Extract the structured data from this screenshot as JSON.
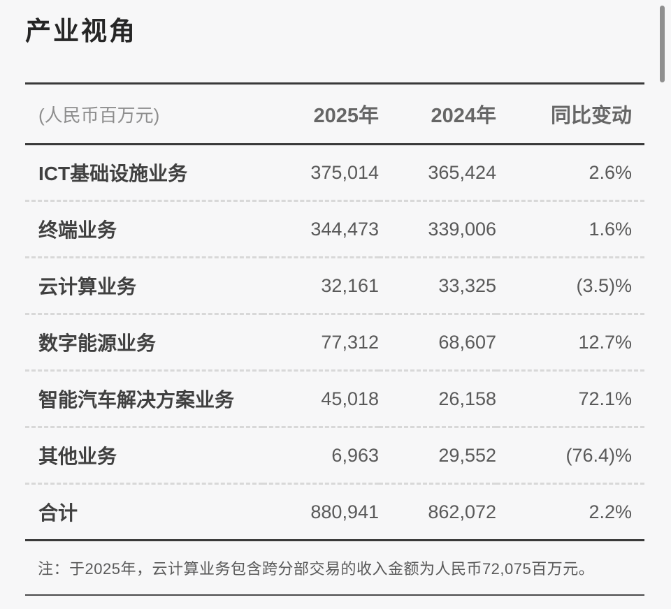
{
  "page": {
    "title": "产业视角"
  },
  "table": {
    "unit_label": "(人民币百万元)",
    "columns": {
      "col_2025": "2025年",
      "col_2024": "2024年",
      "col_yoy": "同比变动"
    },
    "rows": [
      {
        "label": "ICT基础设施业务",
        "y2025": "375,014",
        "y2024": "365,424",
        "yoy": "2.6%"
      },
      {
        "label": "终端业务",
        "y2025": "344,473",
        "y2024": "339,006",
        "yoy": "1.6%"
      },
      {
        "label": "云计算业务",
        "y2025": "32,161",
        "y2024": "33,325",
        "yoy": "(3.5)%"
      },
      {
        "label": "数字能源业务",
        "y2025": "77,312",
        "y2024": "68,607",
        "yoy": "12.7%"
      },
      {
        "label": "智能汽车解决方案业务",
        "y2025": "45,018",
        "y2024": "26,158",
        "yoy": "72.1%"
      },
      {
        "label": "其他业务",
        "y2025": "6,963",
        "y2024": "29,552",
        "yoy": "(76.4)%"
      }
    ],
    "total": {
      "label": "合计",
      "y2025": "880,941",
      "y2024": "862,072",
      "yoy": "2.2%"
    }
  },
  "note": "注：于2025年，云计算业务包含跨分部交易的收入金额为人民币72,075百万元。",
  "chart_data": {
    "type": "table",
    "title": "产业视角",
    "unit": "人民币百万元",
    "columns": [
      "",
      "2025年",
      "2024年",
      "同比变动"
    ],
    "rows": [
      [
        "ICT基础设施业务",
        375014,
        365424,
        "2.6%"
      ],
      [
        "终端业务",
        344473,
        339006,
        "1.6%"
      ],
      [
        "云计算业务",
        32161,
        33325,
        "(3.5)%"
      ],
      [
        "数字能源业务",
        77312,
        68607,
        "12.7%"
      ],
      [
        "智能汽车解决方案业务",
        45018,
        26158,
        "72.1%"
      ],
      [
        "其他业务",
        6963,
        29552,
        "(76.4)%"
      ],
      [
        "合计",
        880941,
        862072,
        "2.2%"
      ]
    ],
    "footnote": "注：于2025年，云计算业务包含跨分部交易的收入金额为人民币72,075百万元。"
  },
  "colors": {
    "background": "#f7f7f8",
    "heavy_rule": "#3a3a3a",
    "dashed_rule": "#d8d8d8",
    "title_text": "#262626",
    "label_text": "#404040",
    "value_text": "#595959",
    "header_text": "#666666",
    "scrollbar": "#8f8f8f"
  }
}
